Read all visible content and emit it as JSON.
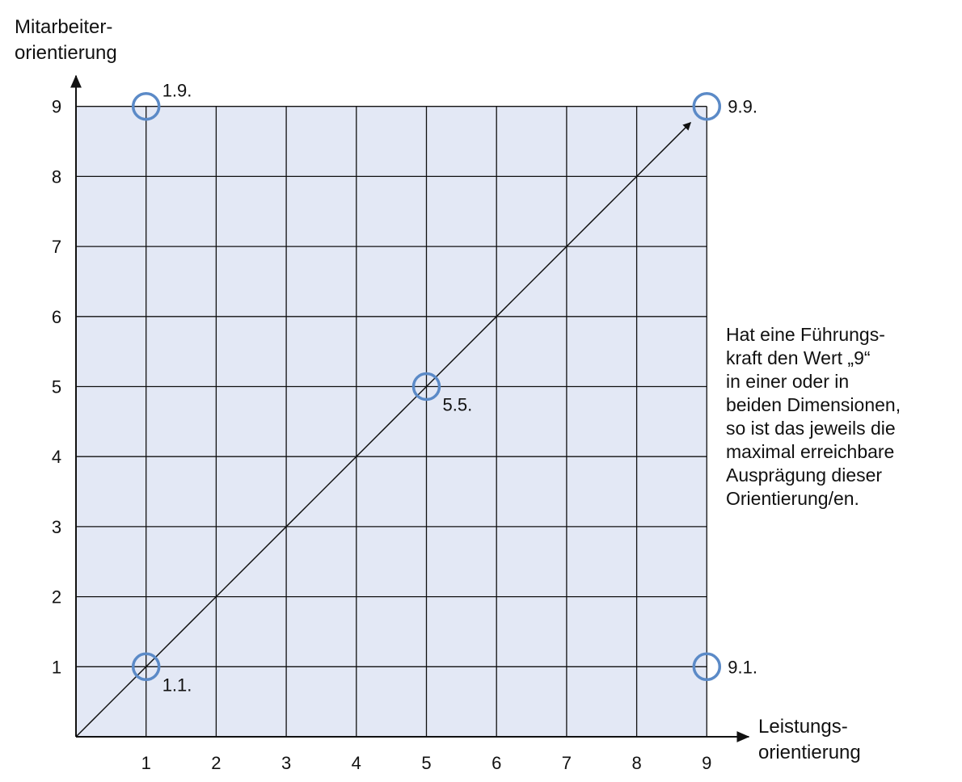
{
  "chart_data": {
    "type": "scatter",
    "title": "",
    "xlabel": "Leistungs-\norientierung",
    "ylabel": "Mitarbeiter-\norientierung",
    "xlim": [
      0,
      9
    ],
    "ylim": [
      0,
      9
    ],
    "x_ticks": [
      "1",
      "2",
      "3",
      "4",
      "5",
      "6",
      "7",
      "8",
      "9"
    ],
    "y_ticks": [
      "1",
      "2",
      "3",
      "4",
      "5",
      "6",
      "7",
      "8",
      "9"
    ],
    "grid": true,
    "points": [
      {
        "x": 1,
        "y": 9,
        "label": "1.9."
      },
      {
        "x": 9,
        "y": 9,
        "label": "9.9."
      },
      {
        "x": 5,
        "y": 5,
        "label": "5.5."
      },
      {
        "x": 1,
        "y": 1,
        "label": "1.1."
      },
      {
        "x": 9,
        "y": 1,
        "label": "9.1."
      }
    ],
    "diagonal_arrow": {
      "from": [
        0,
        0
      ],
      "to": [
        9,
        9
      ]
    },
    "annotation": "Hat eine Führungs-\nkraft den Wert „9“\nin einer oder in\nbeiden Dimensionen,\nso ist das jeweils die\nmaximal erreichbare\nAusprägung dieser\nOrientierung/en.",
    "colors": {
      "plot_bg": "#e3e8f5",
      "marker": "#5b8ac7",
      "grid": "#111111"
    }
  }
}
